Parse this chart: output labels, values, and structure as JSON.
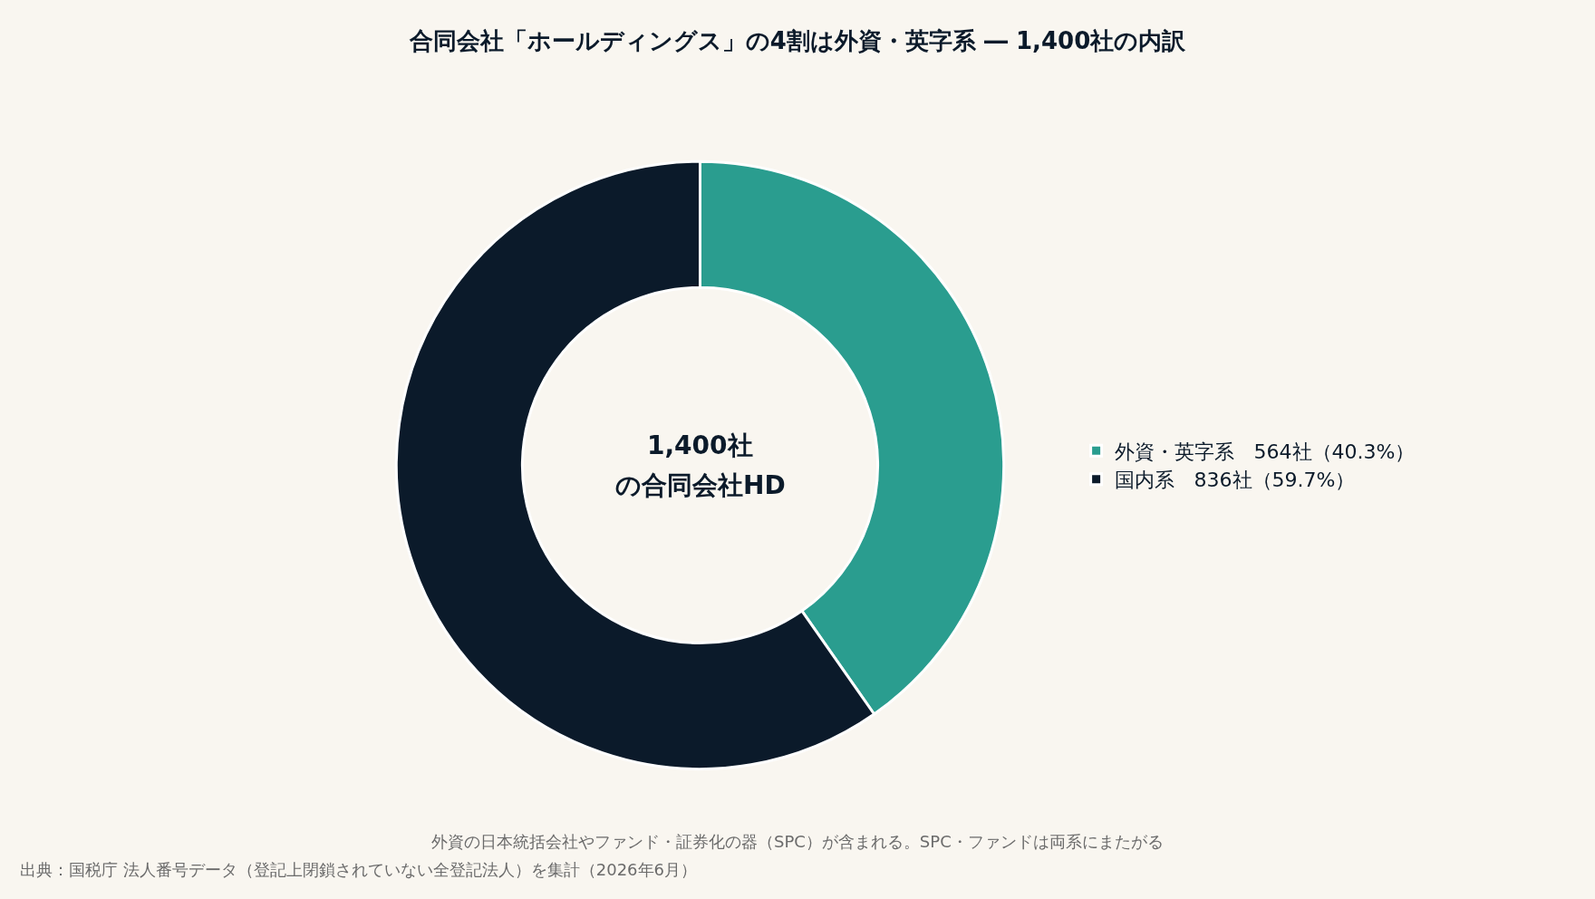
{
  "chart_data": {
    "type": "donut",
    "title": "合同会社「ホールディングス」の4割は外資・英字系 ― 1,400社の内訳",
    "categories": [
      "外資・英字系　564社（40.3%）",
      "国内系　836社（59.7%）"
    ],
    "values": [
      564,
      836
    ],
    "colors": [
      "#2a9d8f",
      "#0b1a2a"
    ],
    "legend": "right",
    "annotations": [
      "1,400社",
      "の合同会社HD",
      "外資の日本統括会社やファンド・証券化の器（SPC）が含まれる。SPC・ファンドは両系にまたがる",
      "出典：国税庁 法人番号データ（登記上閉鎖されていない全登記法人）を集計（2026年6月）"
    ]
  }
}
